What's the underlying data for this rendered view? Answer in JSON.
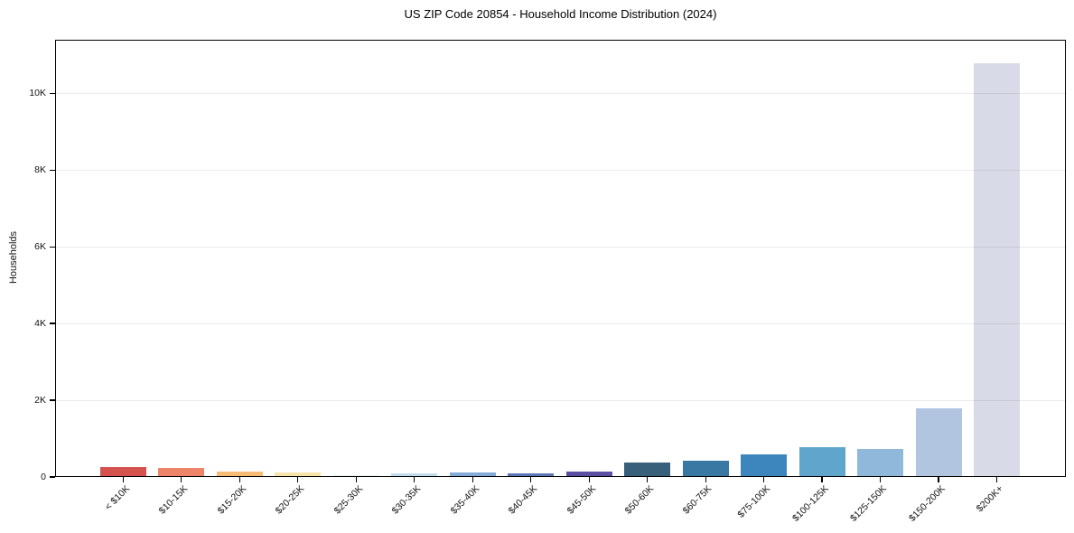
{
  "title": "US ZIP Code 20854 - Household Income Distribution (2024)",
  "chart_data": {
    "type": "bar",
    "title": "US ZIP Code 20854 - Household Income Distribution (2024)",
    "xlabel": "",
    "ylabel": "Households",
    "categories": [
      "< $10K",
      "$10-15K",
      "$15-20K",
      "$20-25K",
      "$25-30K",
      "$30-35K",
      "$35-40K",
      "$40-45K",
      "$45-50K",
      "$50-60K",
      "$60-75K",
      "$75-100K",
      "$100-125K",
      "$125-150K",
      "$150-200K",
      "$200K+"
    ],
    "values": [
      260,
      245,
      140,
      110,
      60,
      85,
      125,
      95,
      140,
      380,
      430,
      600,
      790,
      740,
      1780,
      10800
    ],
    "bar_colors": [
      "#d5534e",
      "#ee8568",
      "#f6bc76",
      "#f8e3a8",
      "#e4f0ee",
      "#c2dcee",
      "#82abd7",
      "#5b76b7",
      "#5b50a4",
      "#38607a",
      "#3878a2",
      "#3c86bd",
      "#60a6cc",
      "#8fb8da",
      "#b2c5e0",
      "#d8dae7"
    ],
    "ylim": [
      0,
      11400
    ],
    "yticks": [
      {
        "value": 0,
        "label": "0"
      },
      {
        "value": 2000,
        "label": "2K"
      },
      {
        "value": 4000,
        "label": "4K"
      },
      {
        "value": 6000,
        "label": "6K"
      },
      {
        "value": 8000,
        "label": "8K"
      },
      {
        "value": 10000,
        "label": "10K"
      }
    ],
    "grid": true,
    "legend": "none",
    "axis_color": "#000000",
    "gridline_color": "#e8e8e8",
    "background_color": "#ffffff"
  }
}
